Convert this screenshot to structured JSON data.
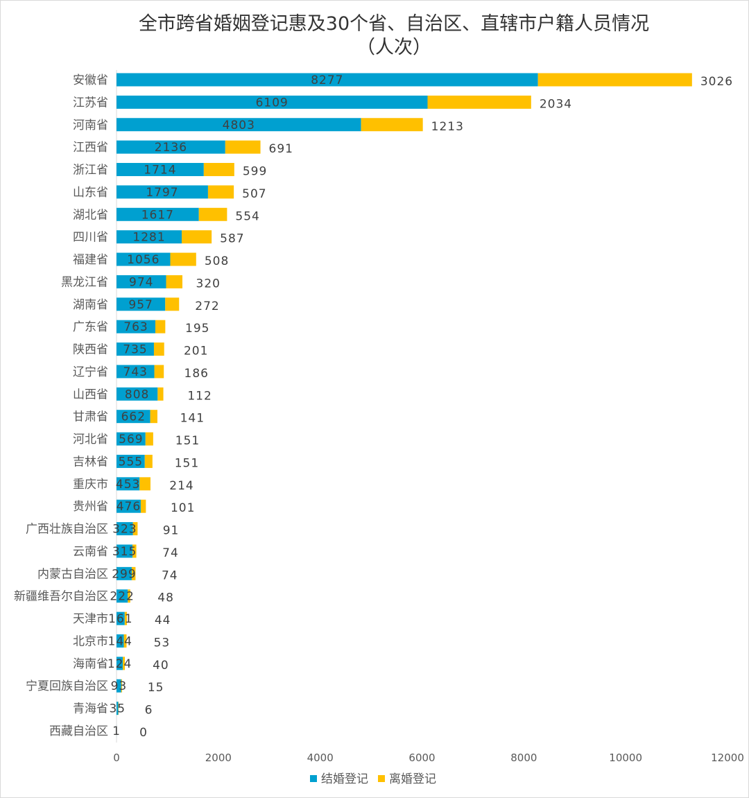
{
  "chart_data": {
    "type": "bar",
    "orientation": "horizontal",
    "stacked": true,
    "title_line1": "全市跨省婚姻登记惠及30个省、自治区、直辖市户籍人员情况",
    "title_line2": "（人次）",
    "categories": [
      "安徽省",
      "江苏省",
      "河南省",
      "江西省",
      "浙江省",
      "山东省",
      "湖北省",
      "四川省",
      "福建省",
      "黑龙江省",
      "湖南省",
      "广东省",
      "陕西省",
      "辽宁省",
      "山西省",
      "甘肃省",
      "河北省",
      "吉林省",
      "重庆市",
      "贵州省",
      "广西壮族自治区",
      "云南省",
      "内蒙古自治区",
      "新疆维吾尔自治区",
      "天津市",
      "北京市",
      "海南省",
      "宁夏回族自治区",
      "青海省",
      "西藏自治区"
    ],
    "series": [
      {
        "name": "结婚登记",
        "color": "#00A0D0",
        "values": [
          8277,
          6109,
          4803,
          2136,
          1714,
          1797,
          1617,
          1281,
          1056,
          974,
          957,
          763,
          735,
          743,
          808,
          662,
          569,
          555,
          453,
          476,
          323,
          315,
          299,
          222,
          161,
          144,
          124,
          93,
          35,
          1
        ]
      },
      {
        "name": "离婚登记",
        "color": "#FFC000",
        "values": [
          3026,
          2034,
          1213,
          691,
          599,
          507,
          554,
          587,
          508,
          320,
          272,
          195,
          201,
          186,
          112,
          141,
          151,
          151,
          214,
          101,
          91,
          74,
          74,
          48,
          44,
          53,
          40,
          15,
          6,
          0
        ]
      }
    ],
    "xlim": [
      0,
      12000
    ],
    "xticks": [
      "0",
      "2000",
      "4000",
      "6000",
      "8000",
      "10000",
      "12000"
    ],
    "grid": false,
    "legend_position": "bottom"
  }
}
